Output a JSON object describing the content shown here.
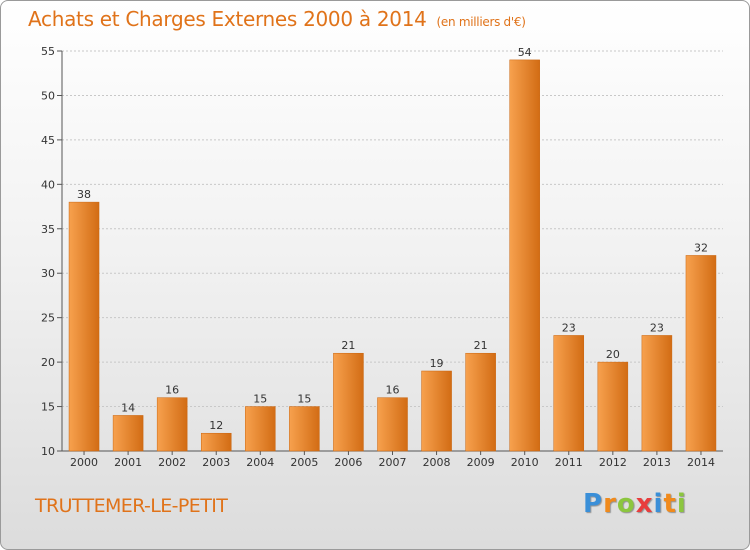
{
  "title": "Achats et Charges Externes 2000 à 2014",
  "unit": "(en milliers d'€)",
  "commune": "TRUTTEMER-LE-PETIT",
  "logo": {
    "letters": [
      "P",
      "r",
      "o",
      "x",
      "i",
      "t",
      "i"
    ],
    "colors": [
      "#3a8fd8",
      "#f08a1c",
      "#8cc63f",
      "#e83e3e",
      "#3a8fd8",
      "#f08a1c",
      "#8cc63f"
    ]
  },
  "colors": {
    "bar_light": "#f7a14e",
    "bar_dark": "#d26c14",
    "accent": "#e0731a"
  },
  "chart_data": {
    "type": "bar",
    "categories": [
      "2000",
      "2001",
      "2002",
      "2003",
      "2004",
      "2005",
      "2006",
      "2007",
      "2008",
      "2009",
      "2010",
      "2011",
      "2012",
      "2013",
      "2014"
    ],
    "values": [
      38,
      14,
      16,
      12,
      15,
      15,
      21,
      16,
      19,
      21,
      54,
      23,
      20,
      23,
      32
    ],
    "ylim": [
      10,
      55
    ],
    "yticks": [
      10,
      15,
      20,
      25,
      30,
      35,
      40,
      45,
      50,
      55
    ],
    "grid": true,
    "legend": "none"
  }
}
